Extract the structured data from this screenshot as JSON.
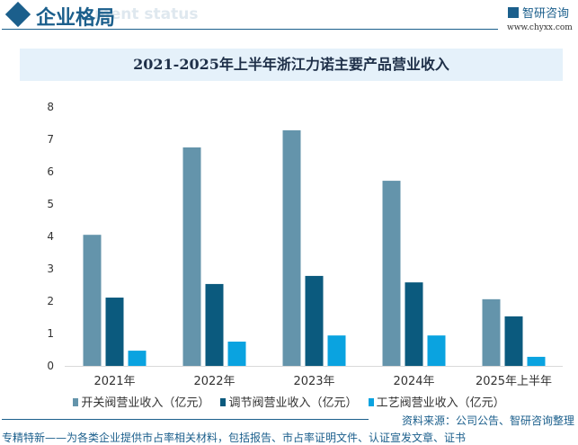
{
  "header": {
    "title": "企业格局",
    "subtitle": "ment status",
    "logo_text": "智研咨询",
    "logo_url": "www.chyxx.com"
  },
  "chart_data": {
    "type": "bar",
    "title": "2021-2025年上半年浙江力诺主要产品营业收入",
    "categories": [
      "2021年",
      "2022年",
      "2023年",
      "2024年",
      "2025年上半年"
    ],
    "series": [
      {
        "name": "开关阀营业收入（亿元）",
        "color": "#6494ab",
        "values": [
          4.05,
          6.75,
          7.28,
          5.72,
          2.06
        ]
      },
      {
        "name": "调节阀营业收入（亿元）",
        "color": "#0b5a7e",
        "values": [
          2.11,
          2.53,
          2.78,
          2.58,
          1.53
        ]
      },
      {
        "name": "工艺阀营业收入（亿元）",
        "color": "#0aa3e0",
        "values": [
          0.47,
          0.75,
          0.94,
          0.94,
          0.28
        ]
      }
    ],
    "ylim": [
      0,
      8
    ],
    "yticks": [
      "0",
      "1",
      "2",
      "3",
      "4",
      "5",
      "6",
      "7",
      "8"
    ],
    "grid": false,
    "legend": "bottom"
  },
  "footer": {
    "source": "资料来源：公司公告、智研咨询整理",
    "tagline": "专精特新——为各类企业提供市占率相关材料，包括报告、市占率证明文件、认证宣发文章、证书"
  }
}
